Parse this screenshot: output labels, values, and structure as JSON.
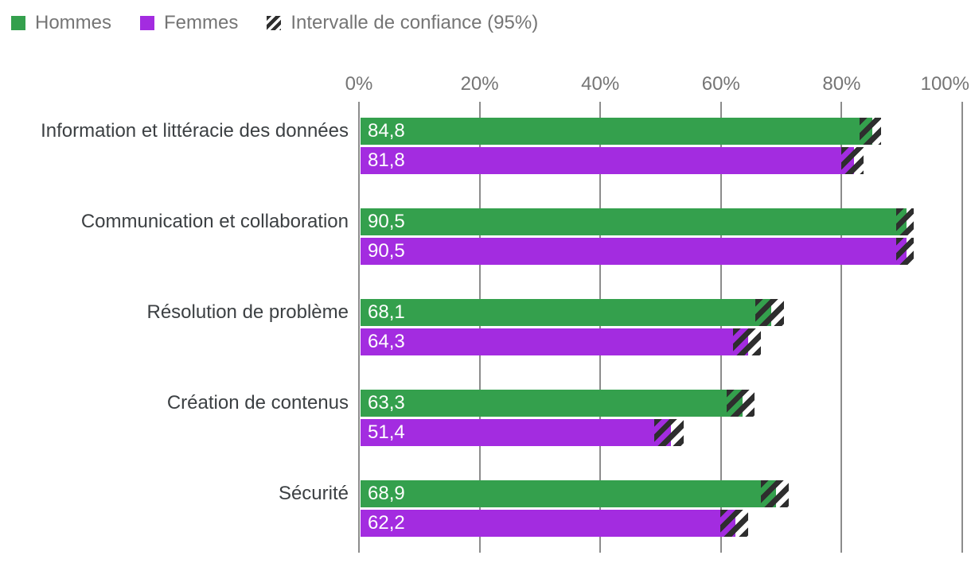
{
  "legend": {
    "hommes_label": "Hommes",
    "femmes_label": "Femmes",
    "ci_label": "Intervalle de confiance (95%)"
  },
  "colors": {
    "hommes": "#34a04d",
    "femmes": "#a32ce0",
    "hatch_stripe": "#2e2e2e",
    "gridline": "#8c8c8c",
    "axis_text": "#757575",
    "category_text": "#3c4043",
    "bar_label_text": "#ffffff"
  },
  "chart_data": {
    "type": "bar",
    "orientation": "horizontal",
    "title": "",
    "categories": [
      "Information et littéracie des données",
      "Communication et collaboration",
      "Résolution de problème",
      "Création de contenus",
      "Sécurité"
    ],
    "series": [
      {
        "name": "Hommes",
        "color_key": "hommes",
        "values": [
          84.8,
          90.5,
          68.1,
          63.3,
          68.9
        ],
        "value_labels": [
          "84,8",
          "90,5",
          "68,1",
          "63,3",
          "68,9"
        ],
        "confidence_intervals_95": [
          [
            83.0,
            86.6
          ],
          [
            89.0,
            92.0
          ],
          [
            65.7,
            70.5
          ],
          [
            61.0,
            65.6
          ],
          [
            66.6,
            71.2
          ]
        ]
      },
      {
        "name": "Femmes",
        "color_key": "femmes",
        "values": [
          81.8,
          90.5,
          64.3,
          51.4,
          62.2
        ],
        "value_labels": [
          "81,8",
          "90,5",
          "64,3",
          "51,4",
          "62,2"
        ],
        "confidence_intervals_95": [
          [
            80.0,
            83.6
          ],
          [
            89.0,
            92.0
          ],
          [
            62.0,
            66.6
          ],
          [
            49.0,
            53.8
          ],
          [
            59.9,
            64.5
          ]
        ]
      }
    ],
    "x_axis": {
      "ticks": [
        "0%",
        "20%",
        "40%",
        "60%",
        "80%",
        "100%"
      ],
      "tick_values": [
        0,
        20,
        40,
        60,
        80,
        100
      ],
      "min": 0,
      "max": 100,
      "position": "top"
    },
    "grid": true,
    "legend_position": "top-left",
    "ci_note": "Intervalle de confiance (95%)"
  }
}
